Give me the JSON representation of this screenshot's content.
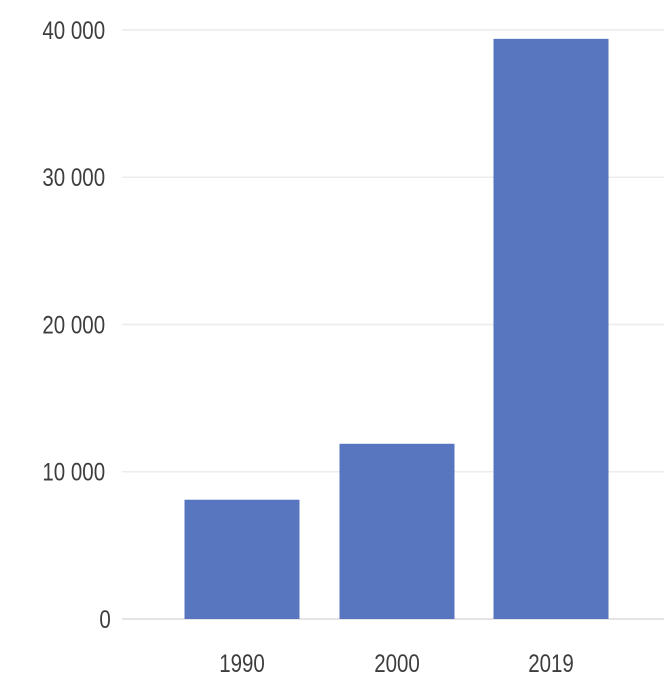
{
  "chart_data": {
    "type": "bar",
    "categories": [
      "1990",
      "2000",
      "2019"
    ],
    "series": [
      {
        "values": [
          8100,
          11900,
          39400
        ]
      }
    ],
    "y_ticks": [
      0,
      10000,
      20000,
      30000,
      40000
    ],
    "y_tick_labels": [
      "0",
      "10 000",
      "20 000",
      "30 000",
      "40 000"
    ],
    "ylim": [
      0,
      40000
    ],
    "grid": true,
    "legend": "none",
    "title": "",
    "xlabel": "",
    "ylabel": "",
    "colors": {
      "bar": "#5875bf",
      "grid": "#ececec",
      "text": "#3d3d3d"
    }
  }
}
